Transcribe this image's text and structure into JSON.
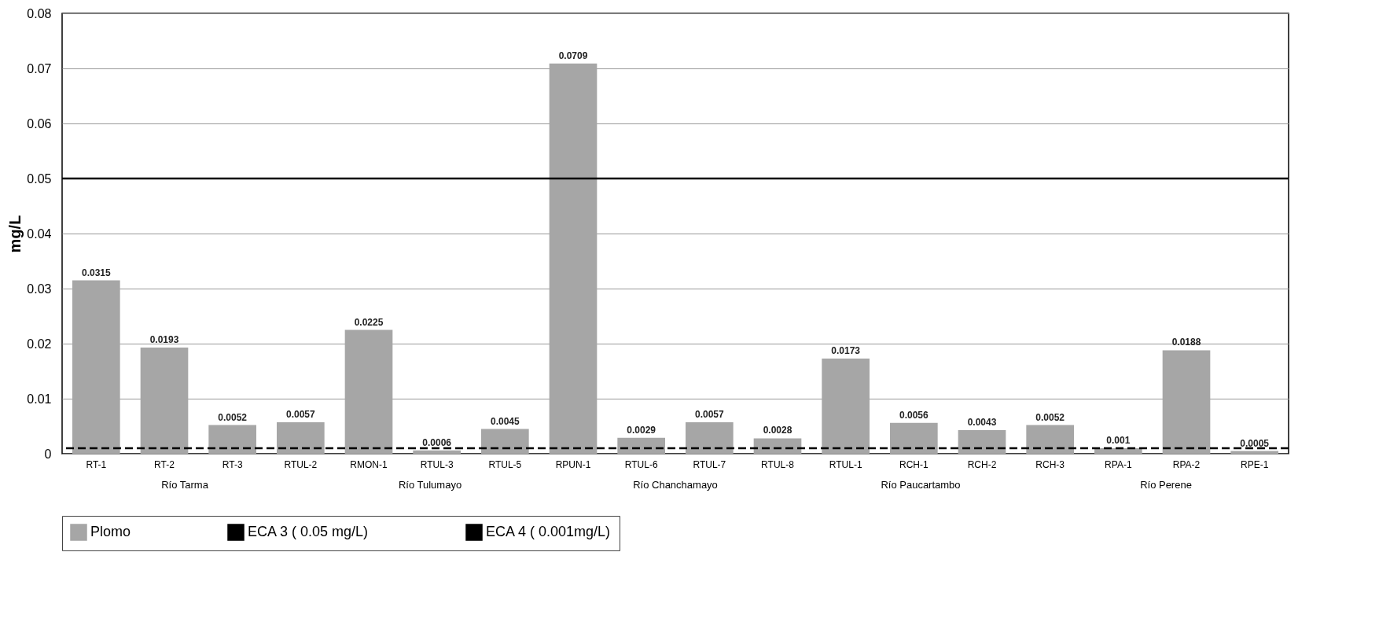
{
  "chart_data": {
    "type": "bar",
    "ylabel": "mg/L",
    "categories": [
      "RT-1",
      "RT-2",
      "RT-3",
      "RTUL-2",
      "RMON-1",
      "RTUL-3",
      "RTUL-5",
      "RPUN-1",
      "RTUL-6",
      "RTUL-7",
      "RTUL-8",
      "RTUL-1",
      "RCH-1",
      "RCH-2",
      "RCH-3",
      "RPA-1",
      "RPA-2",
      "RPE-1"
    ],
    "series": [
      {
        "name": "Plomo",
        "color": "#a6a6a6",
        "values": [
          0.0315,
          0.0193,
          0.0052,
          0.0057,
          0.0225,
          0.0006,
          0.0045,
          0.0709,
          0.0029,
          0.0057,
          0.0028,
          0.0173,
          0.0056,
          0.0043,
          0.0052,
          0.001,
          0.0188,
          0.0005
        ]
      }
    ],
    "ylim": [
      0,
      0.08
    ],
    "yticks": [
      0,
      0.01,
      0.02,
      0.03,
      0.04,
      0.05,
      0.06,
      0.07,
      0.08
    ],
    "grid": "y",
    "data_labels": true,
    "legend": "bottom",
    "ref_lines": [
      {
        "axis": "y",
        "value": 0.05,
        "label": "ECA 3 ( 0.05 mg/L)",
        "color": "#000000",
        "line_style": "solid"
      },
      {
        "axis": "y",
        "value": 0.001,
        "label": "ECA 4 ( 0.001mg/L)",
        "color": "#000000",
        "line_style": "dashed"
      }
    ],
    "annotations": [
      "Río Tarma",
      "Río Tulumayo",
      "Río Chanchamayo",
      "Río Paucartambo",
      "Río Perene"
    ]
  }
}
